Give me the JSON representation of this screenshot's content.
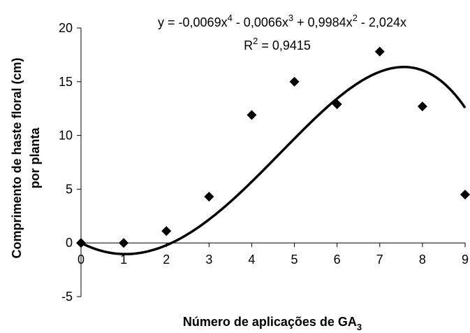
{
  "chart_data": {
    "type": "scatter",
    "x": [
      0,
      1,
      2,
      3,
      4,
      5,
      6,
      7,
      8,
      9
    ],
    "y": [
      0,
      0,
      1.1,
      4.3,
      11.9,
      15.0,
      12.9,
      17.8,
      12.7,
      4.5
    ],
    "trendline": {
      "type": "polynomial",
      "coefficients": [
        -0.0069,
        -0.0066,
        0.9984,
        -2.024,
        0
      ],
      "equation_prefix": "y = -0,0069x",
      "eq_p1": "4",
      "eq_mid1": " - 0,0066x",
      "eq_p2": "3",
      "eq_mid2": " + 0,9984x",
      "eq_p3": "2",
      "eq_tail": " - 2,024x",
      "r2_prefix": "R",
      "r2_sup": "2",
      "r2_value": " = 0,9415"
    },
    "xlabel_main": "Número de aplicações de GA",
    "xlabel_sub": "3",
    "ylabel_line1": "Comprimento de haste floral (cm)",
    "ylabel_line2": "por planta",
    "xlim": [
      0,
      9
    ],
    "ylim": [
      -5,
      20
    ],
    "xticks": [
      "0",
      "1",
      "2",
      "3",
      "4",
      "5",
      "6",
      "7",
      "8",
      "9"
    ],
    "yticks": [
      "-5",
      "0",
      "5",
      "10",
      "15",
      "20"
    ],
    "colors": {
      "marker": "#000000",
      "line": "#000000"
    },
    "grid": false
  }
}
